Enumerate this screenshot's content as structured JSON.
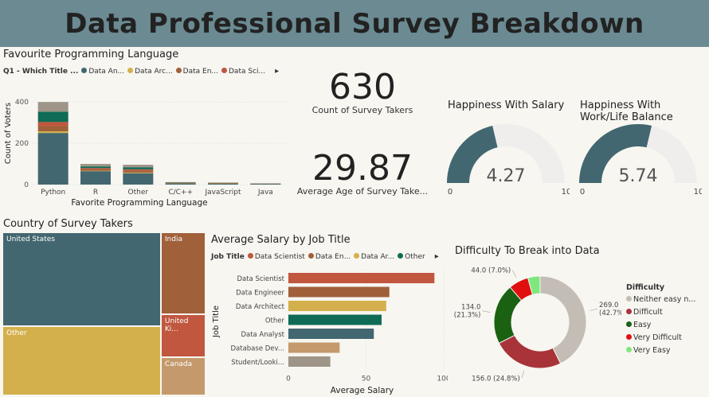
{
  "header": {
    "title": "Data Professional Survey Breakdown"
  },
  "lang_panel": {
    "title": "Favourite Programming Language",
    "legend_label": "Q1 - Which Title ...",
    "legend_items": [
      {
        "name": "Data An...",
        "color": "#436770"
      },
      {
        "name": "Data Arc...",
        "color": "#d4b04c"
      },
      {
        "name": "Data En...",
        "color": "#a0603a"
      },
      {
        "name": "Data Sci...",
        "color": "#c0573e"
      }
    ],
    "more_arrow": "▸"
  },
  "survey_count": {
    "value": "630",
    "label": "Count of Survey Takers"
  },
  "avg_age": {
    "value": "29.87",
    "label": "Average Age of Survey Take..."
  },
  "gauge_salary": {
    "title": "Happiness With Salary",
    "value": "4.27",
    "min": "0",
    "max": "10"
  },
  "gauge_balance": {
    "title": "Happiness With Work/Life Balance",
    "value": "5.74",
    "min": "0",
    "max": "10"
  },
  "country_panel": {
    "title": "Country of Survey Takers"
  },
  "salary_panel": {
    "title": "Average Salary by Job Title",
    "legend_label": "Job Title",
    "legend_items": [
      {
        "name": "Data Scientist",
        "color": "#c0573e"
      },
      {
        "name": "Data En...",
        "color": "#a0603a"
      },
      {
        "name": "Data Ar...",
        "color": "#d4b04c"
      },
      {
        "name": "Other",
        "color": "#0f6b55"
      }
    ],
    "more_arrow": "▸"
  },
  "difficulty_panel": {
    "title": "Difficulty To Break into Data",
    "legend_title": "Difficulty"
  },
  "chart_data": [
    {
      "type": "bar",
      "stacked": true,
      "title": "Favourite Programming Language",
      "xlabel": "Favorite Programming Language",
      "ylabel": "Count of Voters",
      "ylim": [
        0,
        420
      ],
      "yticks": [
        0,
        200,
        400
      ],
      "categories": [
        "Python",
        "R",
        "Other",
        "C/C++",
        "JavaScript",
        "Java"
      ],
      "series": [
        {
          "name": "Data An...",
          "color": "#436770",
          "values": [
            250,
            65,
            55,
            6,
            5,
            3
          ]
        },
        {
          "name": "Data Arc...",
          "color": "#d4b04c",
          "values": [
            8,
            2,
            3,
            1,
            1,
            0
          ]
        },
        {
          "name": "Data En...",
          "color": "#a0603a",
          "values": [
            25,
            8,
            10,
            1,
            1,
            1
          ]
        },
        {
          "name": "Data Sci...",
          "color": "#c0573e",
          "values": [
            20,
            5,
            6,
            1,
            1,
            0
          ]
        },
        {
          "color": "#0f6b55",
          "values": [
            50,
            8,
            10,
            1,
            1,
            1
          ]
        },
        {
          "color": "#9e9588",
          "values": [
            47,
            12,
            12,
            2,
            1,
            1
          ]
        }
      ]
    },
    {
      "type": "treemap",
      "title": "Country of Survey Takers",
      "items": [
        {
          "name": "United States",
          "value": 262,
          "color": "#436770"
        },
        {
          "name": "Other",
          "value": 192,
          "color": "#d4b04c"
        },
        {
          "name": "India",
          "value": 64,
          "color": "#a0603a"
        },
        {
          "name": "United Ki...",
          "value": 34,
          "color": "#c0573e"
        },
        {
          "name": "Canada",
          "value": 30,
          "color": "#c49a6c"
        }
      ]
    },
    {
      "type": "bar",
      "orientation": "horizontal",
      "title": "Average Salary by Job Title",
      "xlabel": "Average Salary",
      "ylabel": "Job Title",
      "xlim": [
        0,
        100
      ],
      "xticks": [
        0,
        50,
        100
      ],
      "categories": [
        "Data Scientist",
        "Data Engineer",
        "Data Architect",
        "Other",
        "Data Analyst",
        "Database Dev...",
        "Student/Looki..."
      ],
      "values": [
        94,
        65,
        63,
        60,
        55,
        33,
        27
      ],
      "colors": [
        "#c0573e",
        "#a0603a",
        "#d4b04c",
        "#0f6b55",
        "#436770",
        "#c49a6c",
        "#9e9588"
      ]
    },
    {
      "type": "pie",
      "donut": true,
      "title": "Difficulty To Break into Data",
      "legend_title": "Difficulty",
      "slices": [
        {
          "name": "Neither easy n...",
          "value": 269.0,
          "pct": "42.7%",
          "color": "#c4bdb5",
          "label": "269.0\n(42.7%)"
        },
        {
          "name": "Difficult",
          "value": 156.0,
          "pct": "24.8%",
          "color": "#a83339",
          "label": "156.0 (24.8%)"
        },
        {
          "name": "Easy",
          "value": 134.0,
          "pct": "21.3%",
          "color": "#1b6112",
          "label": "134.0\n(21.3%)"
        },
        {
          "name": "Very Difficult",
          "value": 44.0,
          "pct": "7.0%",
          "color": "#e01010",
          "label": "44.0 (7.0%)"
        },
        {
          "name": "Very Easy",
          "value": 27.0,
          "pct": "4.3%",
          "color": "#7ee87e",
          "label": ""
        }
      ]
    },
    {
      "type": "gauge",
      "title": "Happiness With Salary",
      "value": 4.27,
      "min": 0,
      "max": 10
    },
    {
      "type": "gauge",
      "title": "Happiness With Work/Life Balance",
      "value": 5.74,
      "min": 0,
      "max": 10
    }
  ]
}
